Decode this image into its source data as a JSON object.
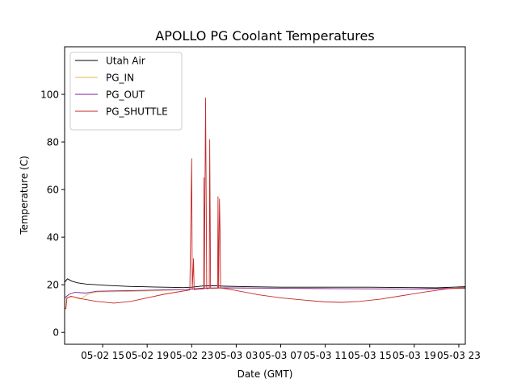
{
  "chart_data": {
    "type": "line",
    "title": "APOLLO PG Coolant Temperatures",
    "xlabel": "Date (GMT)",
    "ylabel": "Temperature (C)",
    "xlim": [
      "05-02 11:35",
      "05-03 23:35"
    ],
    "ylim": [
      -5,
      120
    ],
    "yticks": [
      0,
      20,
      40,
      60,
      80,
      100
    ],
    "xticks": [
      {
        "value": "05-02 15:00",
        "label": "05-02 15"
      },
      {
        "value": "05-02 19:00",
        "label": "05-02 19"
      },
      {
        "value": "05-02 23:00",
        "label": "05-02 23"
      },
      {
        "value": "05-03 03:00",
        "label": "05-03 03"
      },
      {
        "value": "05-03 07:00",
        "label": "05-03 07"
      },
      {
        "value": "05-03 11:00",
        "label": "05-03 11"
      },
      {
        "value": "05-03 15:00",
        "label": "05-03 15"
      },
      {
        "value": "05-03 19:00",
        "label": "05-03 19"
      },
      {
        "value": "05-03 23:00",
        "label": "05-03 23"
      }
    ],
    "grid": false,
    "legend_position": "upper-left",
    "series": [
      {
        "name": "Utah Air",
        "color": "#000000",
        "points": [
          [
            "05-02 11:35",
            21.0
          ],
          [
            "05-02 11:50",
            22.5
          ],
          [
            "05-02 12:15",
            21.5
          ],
          [
            "05-02 12:45",
            20.8
          ],
          [
            "05-02 13:30",
            20.3
          ],
          [
            "05-02 14:30",
            20.0
          ],
          [
            "05-02 15:30",
            19.7
          ],
          [
            "05-02 16:30",
            19.5
          ],
          [
            "05-02 17:30",
            19.3
          ],
          [
            "05-02 18:30",
            19.2
          ],
          [
            "05-02 19:30",
            19.1
          ],
          [
            "05-02 20:30",
            19.0
          ],
          [
            "05-02 21:30",
            18.9
          ],
          [
            "05-02 22:15",
            18.8
          ],
          [
            "05-02 23:00",
            19.0
          ],
          [
            "05-03 00:00",
            19.5
          ],
          [
            "05-03 01:00",
            19.6
          ],
          [
            "05-03 02:00",
            19.4
          ],
          [
            "05-03 04:00",
            19.2
          ],
          [
            "05-03 07:00",
            19.0
          ],
          [
            "05-03 11:00",
            19.0
          ],
          [
            "05-03 15:00",
            19.0
          ],
          [
            "05-03 19:00",
            18.8
          ],
          [
            "05-03 21:00",
            18.7
          ],
          [
            "05-03 23:35",
            19.2
          ]
        ]
      },
      {
        "name": "PG_IN",
        "color": "#e8b74a",
        "points": [
          [
            "05-02 11:35",
            10.0
          ],
          [
            "05-02 11:42",
            10.0
          ],
          [
            "05-02 11:45",
            14.5
          ],
          [
            "05-02 12:15",
            15.0
          ],
          [
            "05-02 13:00",
            14.0
          ],
          [
            "05-02 13:40",
            16.0
          ],
          [
            "05-02 14:30",
            17.0
          ],
          [
            "05-02 17:00",
            17.2
          ],
          [
            "05-02 20:00",
            17.5
          ],
          [
            "05-02 22:30",
            18.0
          ],
          [
            "05-03 00:00",
            18.5
          ],
          [
            "05-03 02:00",
            18.6
          ],
          [
            "05-03 08:00",
            18.5
          ],
          [
            "05-03 14:00",
            18.3
          ],
          [
            "05-03 19:00",
            18.2
          ],
          [
            "05-03 23:35",
            18.4
          ]
        ]
      },
      {
        "name": "PG_OUT",
        "color": "#7b1fa2",
        "points": [
          [
            "05-02 11:35",
            14.5
          ],
          [
            "05-02 12:00",
            16.0
          ],
          [
            "05-02 12:30",
            16.8
          ],
          [
            "05-02 13:30",
            16.5
          ],
          [
            "05-02 14:30",
            17.3
          ],
          [
            "05-02 17:00",
            17.5
          ],
          [
            "05-02 20:00",
            17.8
          ],
          [
            "05-02 22:30",
            18.0
          ],
          [
            "05-03 00:00",
            18.6
          ],
          [
            "05-03 02:00",
            18.7
          ],
          [
            "05-03 08:00",
            18.5
          ],
          [
            "05-03 14:00",
            18.3
          ],
          [
            "05-03 19:00",
            18.2
          ],
          [
            "05-03 23:35",
            18.6
          ]
        ]
      },
      {
        "name": "PG_SHUTTLE",
        "color": "#c62828",
        "points": [
          [
            "05-02 11:35",
            10.0
          ],
          [
            "05-02 11:42",
            10.0
          ],
          [
            "05-02 11:48",
            14.5
          ],
          [
            "05-02 12:10",
            15.2
          ],
          [
            "05-02 13:00",
            14.2
          ],
          [
            "05-02 14:30",
            13.0
          ],
          [
            "05-02 16:00",
            12.3
          ],
          [
            "05-02 17:30",
            13.0
          ],
          [
            "05-02 19:00",
            14.5
          ],
          [
            "05-02 20:30",
            16.0
          ],
          [
            "05-02 22:00",
            17.2
          ],
          [
            "05-02 22:50",
            17.8
          ],
          [
            "05-02 23:00",
            73.0
          ],
          [
            "05-02 23:03",
            18.0
          ],
          [
            "05-02 23:10",
            31.0
          ],
          [
            "05-02 23:13",
            18.0
          ],
          [
            "05-03 00:05",
            18.3
          ],
          [
            "05-03 00:06",
            65.0
          ],
          [
            "05-03 00:08",
            18.3
          ],
          [
            "05-03 00:15",
            98.5
          ],
          [
            "05-03 00:18",
            59.0
          ],
          [
            "05-03 00:21",
            18.3
          ],
          [
            "05-03 00:35",
            18.5
          ],
          [
            "05-03 00:37",
            81.0
          ],
          [
            "05-03 00:40",
            42.0
          ],
          [
            "05-03 00:42",
            18.5
          ],
          [
            "05-03 01:20",
            18.6
          ],
          [
            "05-03 01:22",
            57.0
          ],
          [
            "05-03 01:25",
            18.6
          ],
          [
            "05-03 01:30",
            56.0
          ],
          [
            "05-03 01:33",
            43.0
          ],
          [
            "05-03 01:36",
            18.7
          ],
          [
            "05-03 03:00",
            17.6
          ],
          [
            "05-03 05:00",
            15.8
          ],
          [
            "05-03 07:00",
            14.5
          ],
          [
            "05-03 09:00",
            13.6
          ],
          [
            "05-03 11:00",
            12.8
          ],
          [
            "05-03 12:30",
            12.6
          ],
          [
            "05-03 14:00",
            13.0
          ],
          [
            "05-03 16:00",
            14.0
          ],
          [
            "05-03 18:00",
            15.5
          ],
          [
            "05-03 20:00",
            17.0
          ],
          [
            "05-03 22:00",
            18.3
          ],
          [
            "05-03 23:35",
            18.9
          ]
        ]
      }
    ]
  }
}
